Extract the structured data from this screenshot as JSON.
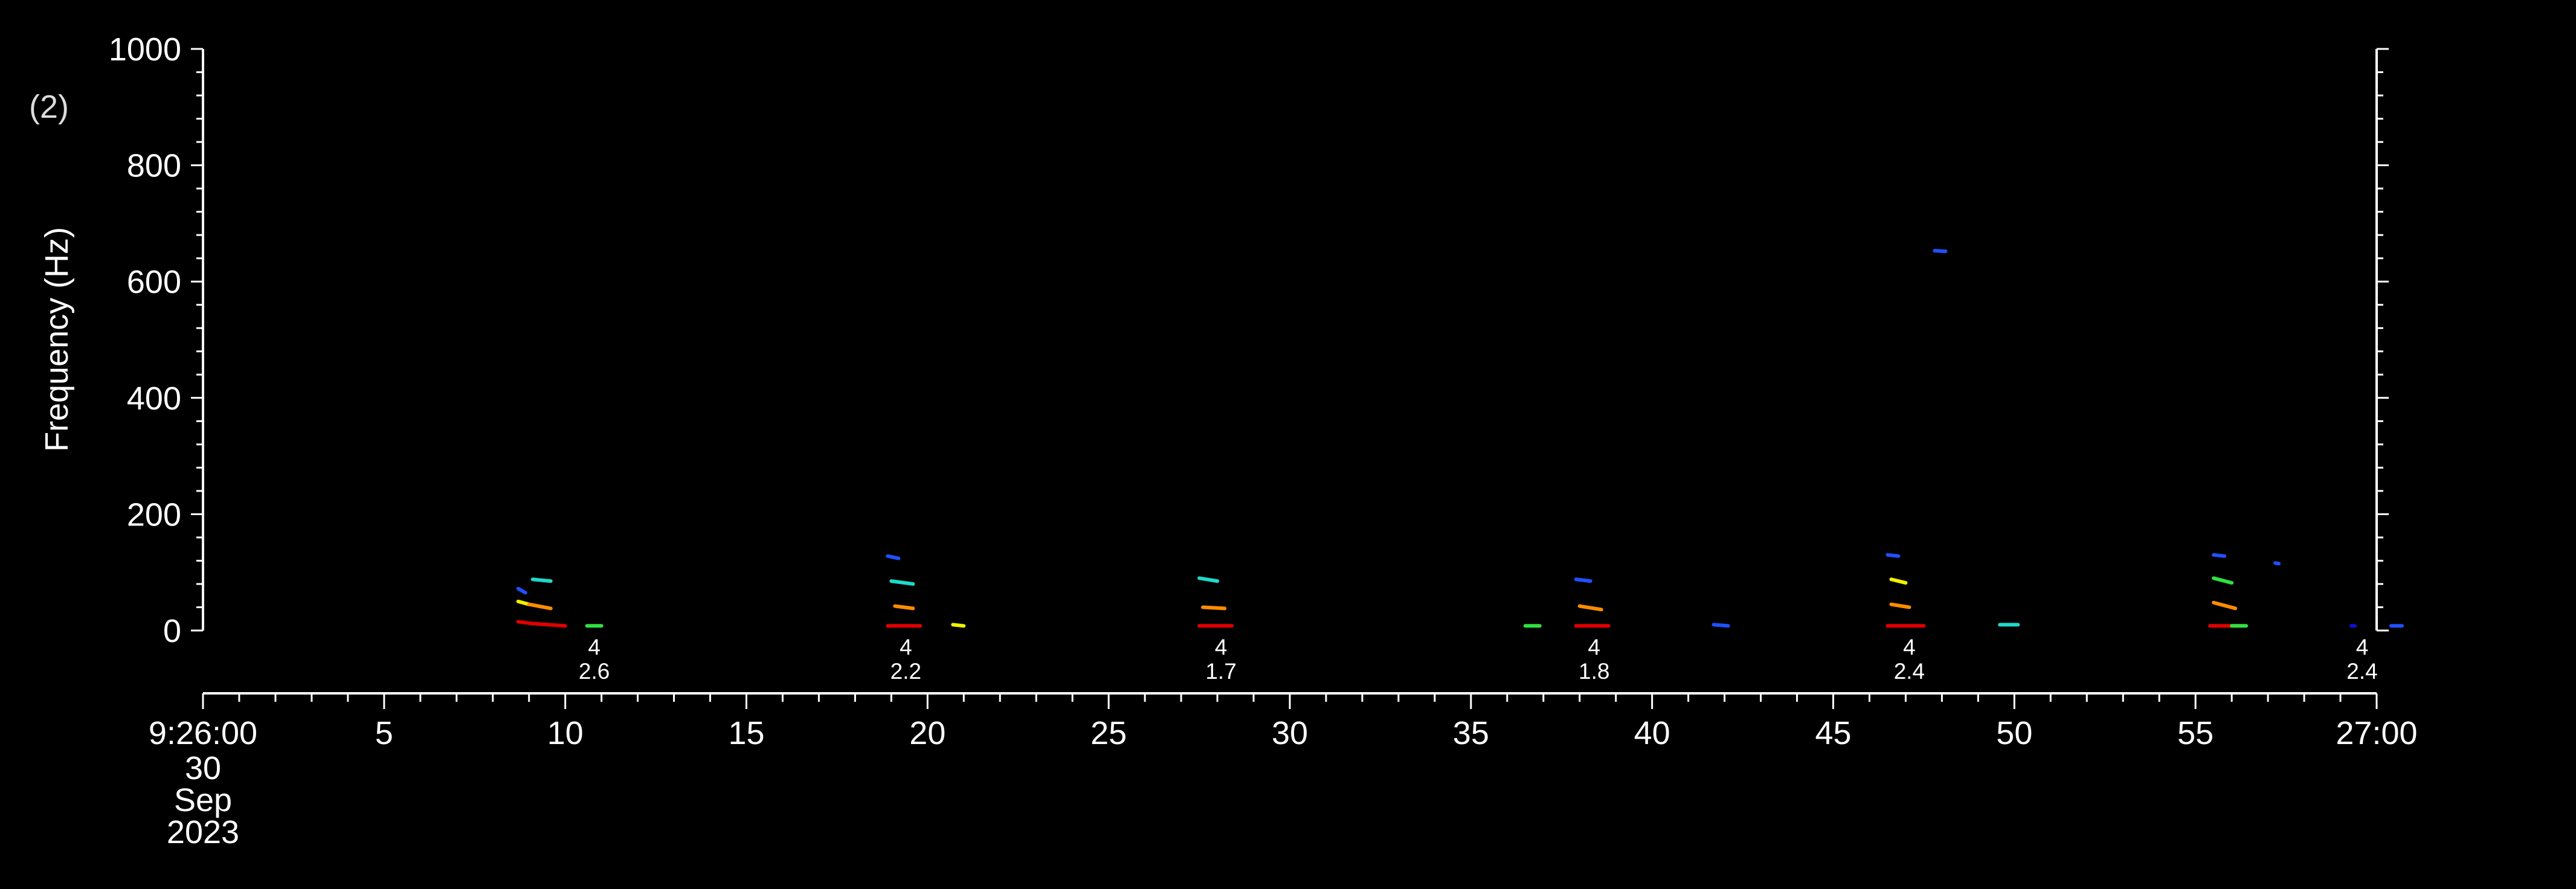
{
  "chart_data": {
    "type": "scatter",
    "panel_label": "(2)",
    "ylabel": "Frequency (Hz)",
    "ylim": [
      0,
      1000
    ],
    "yticks": [
      0,
      200,
      400,
      600,
      800,
      1000
    ],
    "xlim_seconds": [
      0,
      60
    ],
    "xtick_labels": [
      {
        "t": 0,
        "label": "9:26:00"
      },
      {
        "t": 5,
        "label": "5"
      },
      {
        "t": 10,
        "label": "10"
      },
      {
        "t": 15,
        "label": "15"
      },
      {
        "t": 20,
        "label": "20"
      },
      {
        "t": 25,
        "label": "25"
      },
      {
        "t": 30,
        "label": "30"
      },
      {
        "t": 35,
        "label": "35"
      },
      {
        "t": 40,
        "label": "40"
      },
      {
        "t": 45,
        "label": "45"
      },
      {
        "t": 50,
        "label": "50"
      },
      {
        "t": 55,
        "label": "55"
      },
      {
        "t": 60,
        "label": "27:00"
      }
    ],
    "date_labels": [
      "30",
      "Sep",
      "2023"
    ],
    "annotations": [
      {
        "t": 10.8,
        "line1": "4",
        "line2": "2.6"
      },
      {
        "t": 19.4,
        "line1": "4",
        "line2": "2.2"
      },
      {
        "t": 28.1,
        "line1": "4",
        "line2": "1.7"
      },
      {
        "t": 38.4,
        "line1": "4",
        "line2": "1.8"
      },
      {
        "t": 47.1,
        "line1": "4",
        "line2": "2.4"
      },
      {
        "t": 59.6,
        "line1": "4",
        "line2": "2.4"
      }
    ],
    "colors": {
      "background": "#000000",
      "axes": "#ffffff",
      "red": "#e00000",
      "orange": "#ff8c00",
      "yellow": "#f0f000",
      "green": "#30e040",
      "cyan": "#20d8c8",
      "blue": "#2050ff",
      "navy": "#1010d0"
    },
    "points": [
      {
        "t0": 8.7,
        "t1": 9.1,
        "f0": 15,
        "f1": 12,
        "color": "red"
      },
      {
        "t0": 9.1,
        "t1": 10.0,
        "f0": 12,
        "f1": 8,
        "color": "red"
      },
      {
        "t0": 8.7,
        "t1": 9.0,
        "f0": 50,
        "f1": 45,
        "color": "yellow"
      },
      {
        "t0": 9.0,
        "t1": 9.6,
        "f0": 45,
        "f1": 38,
        "color": "orange"
      },
      {
        "t0": 8.7,
        "t1": 8.9,
        "f0": 72,
        "f1": 65,
        "color": "blue"
      },
      {
        "t0": 9.1,
        "t1": 9.6,
        "f0": 88,
        "f1": 85,
        "color": "cyan"
      },
      {
        "t0": 10.6,
        "t1": 11.0,
        "f0": 8,
        "f1": 8,
        "color": "green"
      },
      {
        "t0": 18.9,
        "t1": 19.8,
        "f0": 8,
        "f1": 8,
        "color": "red"
      },
      {
        "t0": 19.1,
        "t1": 19.6,
        "f0": 42,
        "f1": 38,
        "color": "orange"
      },
      {
        "t0": 19.0,
        "t1": 19.6,
        "f0": 85,
        "f1": 80,
        "color": "cyan"
      },
      {
        "t0": 18.9,
        "t1": 19.2,
        "f0": 128,
        "f1": 124,
        "color": "blue"
      },
      {
        "t0": 20.7,
        "t1": 21.0,
        "f0": 10,
        "f1": 8,
        "color": "yellow"
      },
      {
        "t0": 27.5,
        "t1": 28.4,
        "f0": 8,
        "f1": 8,
        "color": "red"
      },
      {
        "t0": 27.6,
        "t1": 28.2,
        "f0": 40,
        "f1": 38,
        "color": "orange"
      },
      {
        "t0": 27.5,
        "t1": 28.0,
        "f0": 90,
        "f1": 85,
        "color": "cyan"
      },
      {
        "t0": 36.5,
        "t1": 36.9,
        "f0": 8,
        "f1": 8,
        "color": "green"
      },
      {
        "t0": 37.9,
        "t1": 38.8,
        "f0": 8,
        "f1": 8,
        "color": "red"
      },
      {
        "t0": 38.0,
        "t1": 38.6,
        "f0": 42,
        "f1": 36,
        "color": "orange"
      },
      {
        "t0": 37.9,
        "t1": 38.3,
        "f0": 88,
        "f1": 85,
        "color": "blue"
      },
      {
        "t0": 41.7,
        "t1": 42.1,
        "f0": 10,
        "f1": 8,
        "color": "blue"
      },
      {
        "t0": 46.5,
        "t1": 47.5,
        "f0": 8,
        "f1": 8,
        "color": "red"
      },
      {
        "t0": 46.6,
        "t1": 47.1,
        "f0": 45,
        "f1": 40,
        "color": "orange"
      },
      {
        "t0": 46.6,
        "t1": 47.0,
        "f0": 88,
        "f1": 82,
        "color": "yellow"
      },
      {
        "t0": 46.5,
        "t1": 46.8,
        "f0": 130,
        "f1": 128,
        "color": "blue"
      },
      {
        "t0": 47.8,
        "t1": 48.1,
        "f0": 653,
        "f1": 652,
        "color": "blue"
      },
      {
        "t0": 49.6,
        "t1": 50.1,
        "f0": 10,
        "f1": 10,
        "color": "cyan"
      },
      {
        "t0": 55.4,
        "t1": 56.3,
        "f0": 8,
        "f1": 8,
        "color": "red"
      },
      {
        "t0": 55.5,
        "t1": 56.1,
        "f0": 48,
        "f1": 38,
        "color": "orange"
      },
      {
        "t0": 55.5,
        "t1": 56.0,
        "f0": 90,
        "f1": 82,
        "color": "green"
      },
      {
        "t0": 55.5,
        "t1": 55.8,
        "f0": 130,
        "f1": 128,
        "color": "blue"
      },
      {
        "t0": 56.0,
        "t1": 56.4,
        "f0": 8,
        "f1": 8,
        "color": "green"
      },
      {
        "t0": 57.2,
        "t1": 57.3,
        "f0": 116,
        "f1": 115,
        "color": "blue"
      },
      {
        "t0": 59.3,
        "t1": 59.4,
        "f0": 8,
        "f1": 8,
        "color": "navy"
      },
      {
        "t0": 60.4,
        "t1": 60.7,
        "f0": 8,
        "f1": 8,
        "color": "blue"
      }
    ]
  }
}
